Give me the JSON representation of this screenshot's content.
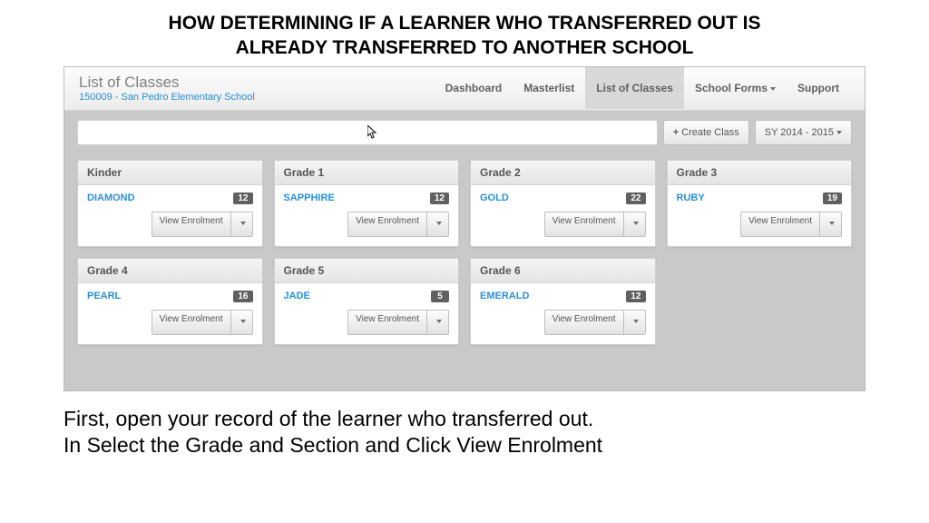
{
  "slide": {
    "title_line1": "HOW DETERMINING IF A LEARNER WHO TRANSFERRED OUT IS",
    "title_line2": "ALREADY TRANSFERRED TO ANOTHER SCHOOL",
    "instruction_line1": "First, open your record of the learner who transferred out.",
    "instruction_line2": "In Select the Grade and Section and Click View Enrolment"
  },
  "header": {
    "title": "List of Classes",
    "subtitle": "150009 - San Pedro Elementary School"
  },
  "nav": {
    "items": [
      {
        "label": "Dashboard",
        "active": false,
        "has_caret": false
      },
      {
        "label": "Masterlist",
        "active": false,
        "has_caret": false
      },
      {
        "label": "List of Classes",
        "active": true,
        "has_caret": false
      },
      {
        "label": "School Forms",
        "active": false,
        "has_caret": true
      },
      {
        "label": "Support",
        "active": false,
        "has_caret": false
      }
    ]
  },
  "toolbar": {
    "create_class": "Create Class",
    "school_year": "SY 2014 - 2015"
  },
  "view_enrolment_label": "View Enrolment",
  "classes": [
    {
      "grade": "Kinder",
      "section": "DIAMOND",
      "count": "12"
    },
    {
      "grade": "Grade 1",
      "section": "SAPPHIRE",
      "count": "12"
    },
    {
      "grade": "Grade 2",
      "section": "GOLD",
      "count": "22"
    },
    {
      "grade": "Grade 3",
      "section": "RUBY",
      "count": "19"
    },
    {
      "grade": "Grade 4",
      "section": "PEARL",
      "count": "16"
    },
    {
      "grade": "Grade 5",
      "section": "JADE",
      "count": "5"
    },
    {
      "grade": "Grade 6",
      "section": "EMERALD",
      "count": "12"
    }
  ],
  "colors": {
    "link": "#2a8fd4",
    "bg_gray": "#c9c9c9",
    "badge": "#606060"
  }
}
